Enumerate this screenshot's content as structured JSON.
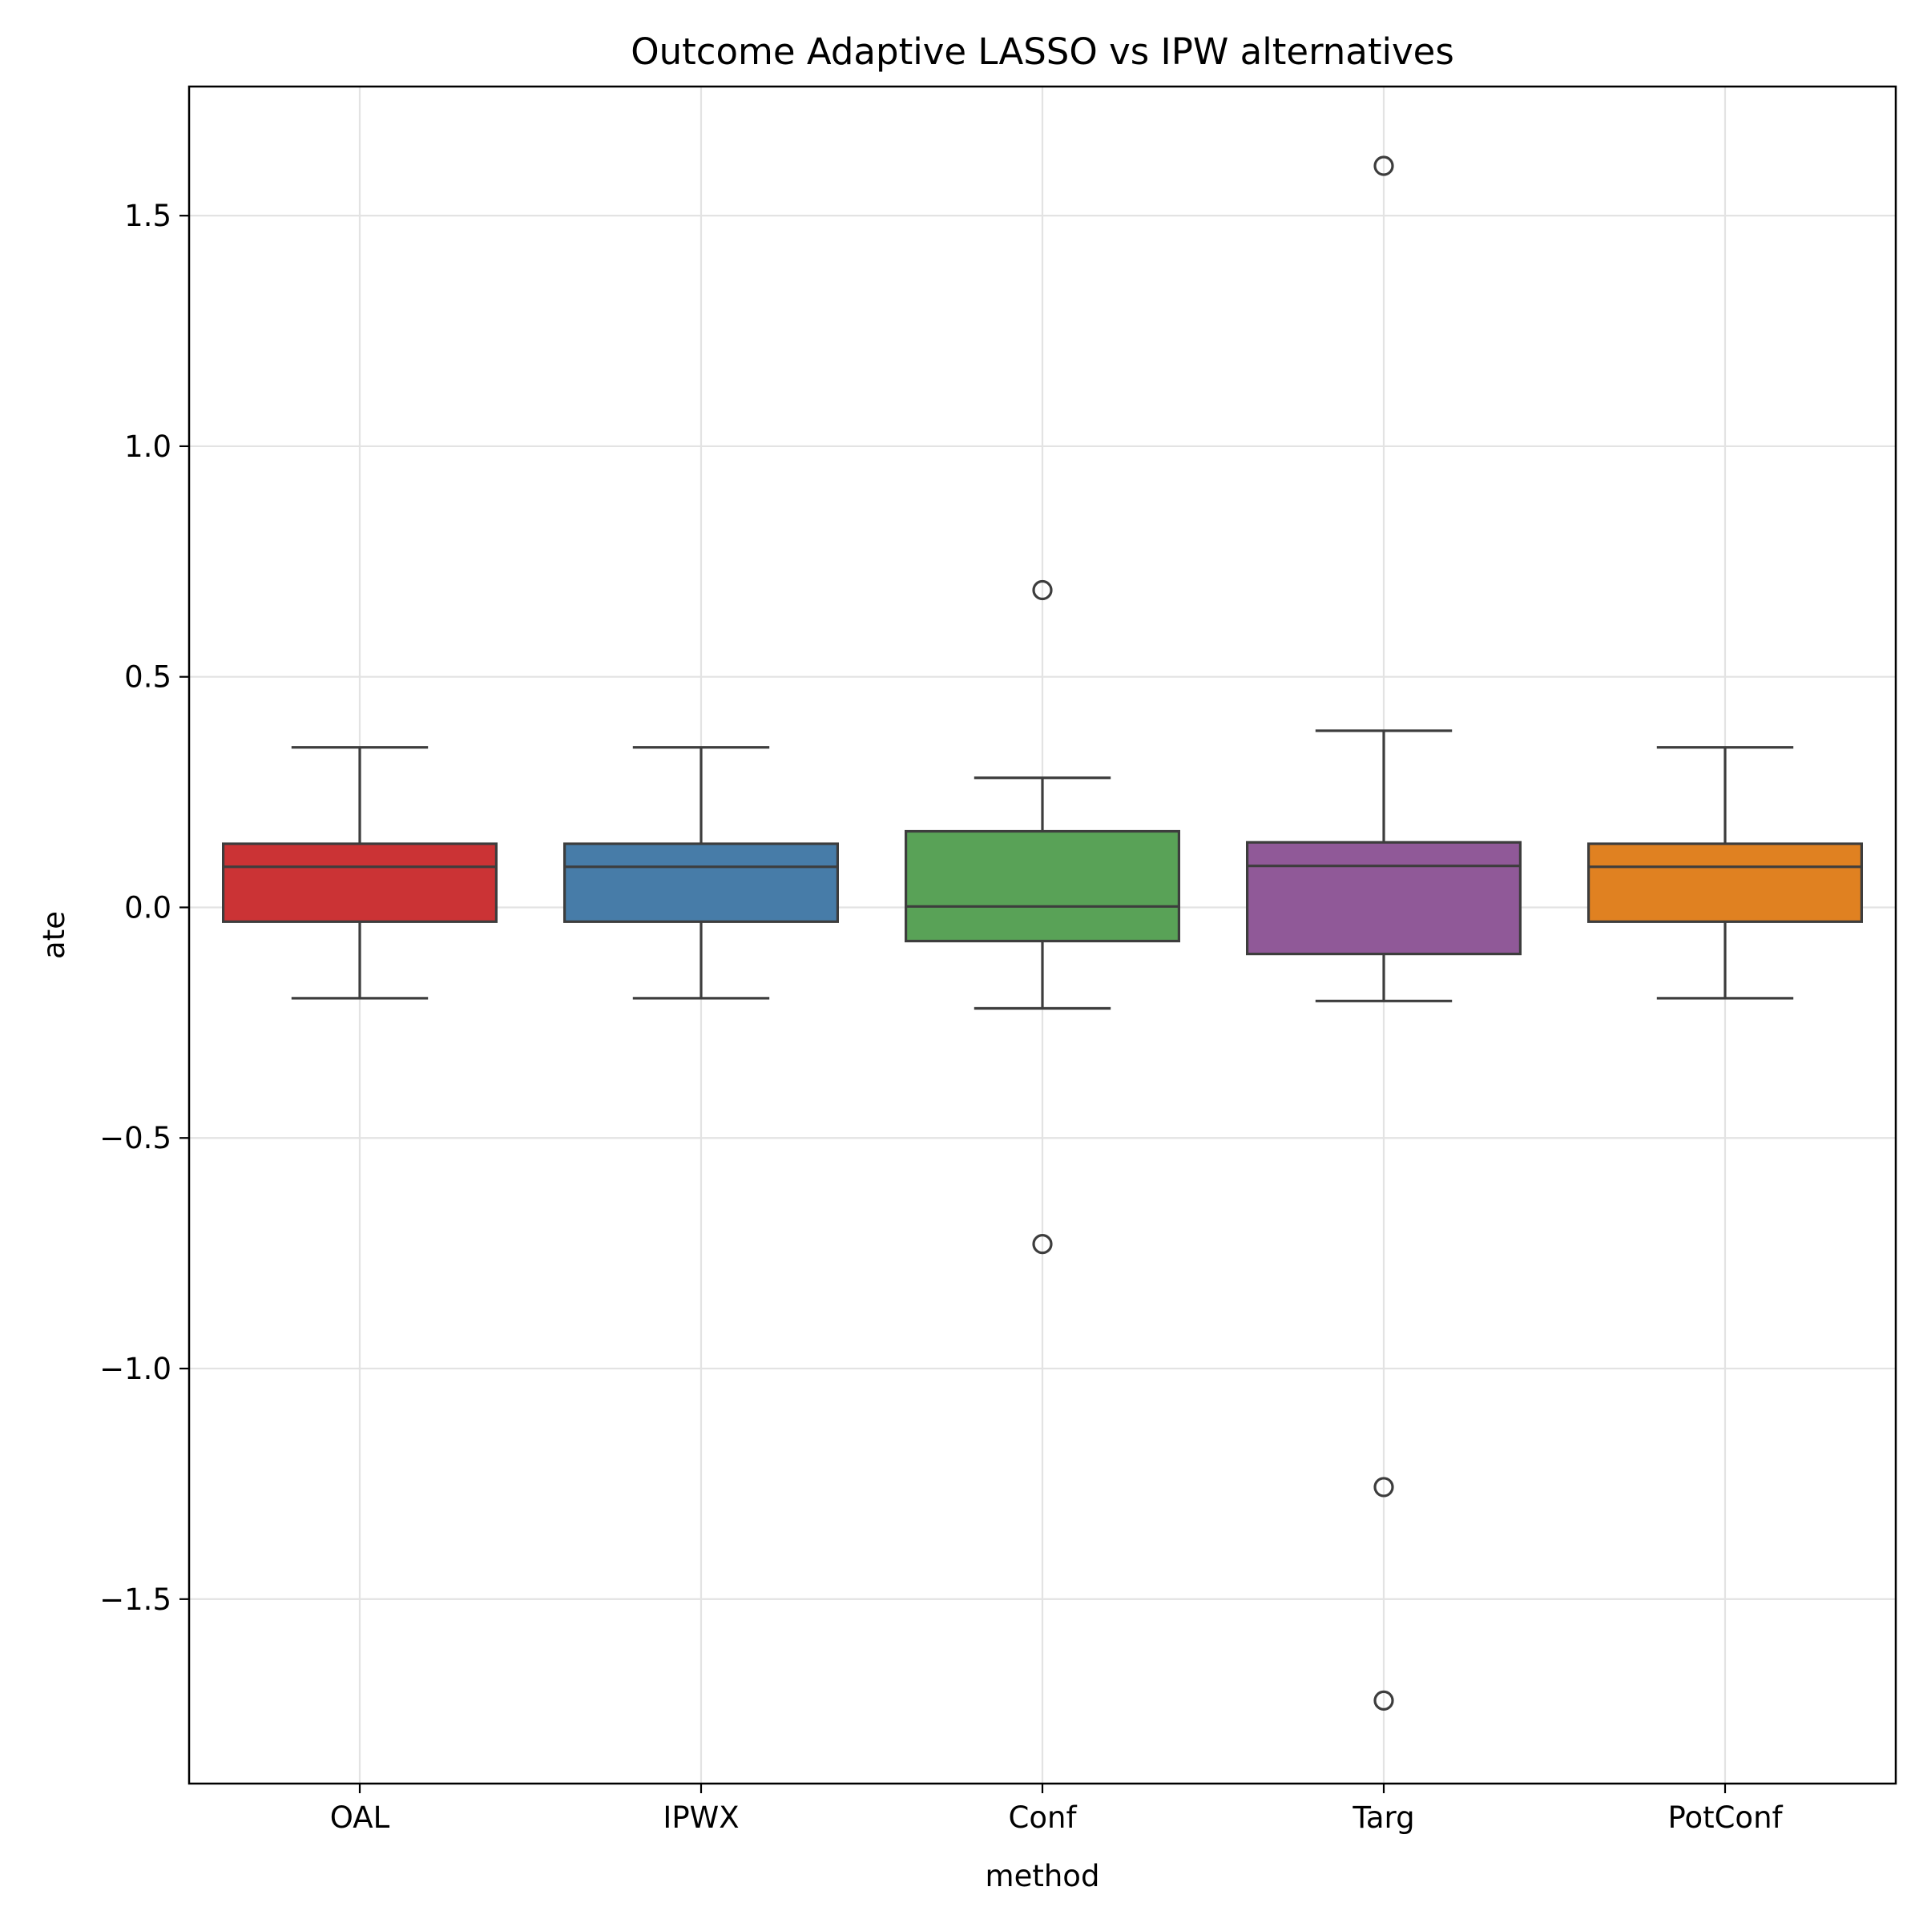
{
  "chart_data": {
    "type": "box",
    "title": "Outcome Adaptive LASSO vs IPW alternatives",
    "xlabel": "method",
    "ylabel": "ate",
    "ylim": [
      -1.9,
      1.78
    ],
    "yticks": [
      -1.5,
      -1.0,
      -0.5,
      0.0,
      0.5,
      1.0,
      1.5
    ],
    "ytick_labels": [
      "−1.5",
      "−1.0",
      "−0.5",
      "0.0",
      "0.5",
      "1.0",
      "1.5"
    ],
    "grid": true,
    "categories": [
      "OAL",
      "IPWX",
      "Conf",
      "Targ",
      "PotConf"
    ],
    "colors": [
      "#cb3335",
      "#477ca8",
      "#59a257",
      "#905998",
      "#e08121"
    ],
    "boxes": [
      {
        "category": "OAL",
        "whisker_low": -0.197,
        "q1": -0.031,
        "median": 0.088,
        "q3": 0.138,
        "whisker_high": 0.347,
        "outliers": []
      },
      {
        "category": "IPWX",
        "whisker_low": -0.197,
        "q1": -0.031,
        "median": 0.088,
        "q3": 0.138,
        "whisker_high": 0.347,
        "outliers": []
      },
      {
        "category": "Conf",
        "whisker_low": -0.219,
        "q1": -0.073,
        "median": 0.002,
        "q3": 0.165,
        "whisker_high": 0.281,
        "outliers": [
          0.688,
          -0.73
        ]
      },
      {
        "category": "Targ",
        "whisker_low": -0.203,
        "q1": -0.101,
        "median": 0.09,
        "q3": 0.141,
        "whisker_high": 0.383,
        "outliers": [
          1.608,
          -1.257,
          -1.72
        ]
      },
      {
        "category": "PotConf",
        "whisker_low": -0.197,
        "q1": -0.031,
        "median": 0.088,
        "q3": 0.138,
        "whisker_high": 0.347,
        "outliers": []
      }
    ]
  }
}
